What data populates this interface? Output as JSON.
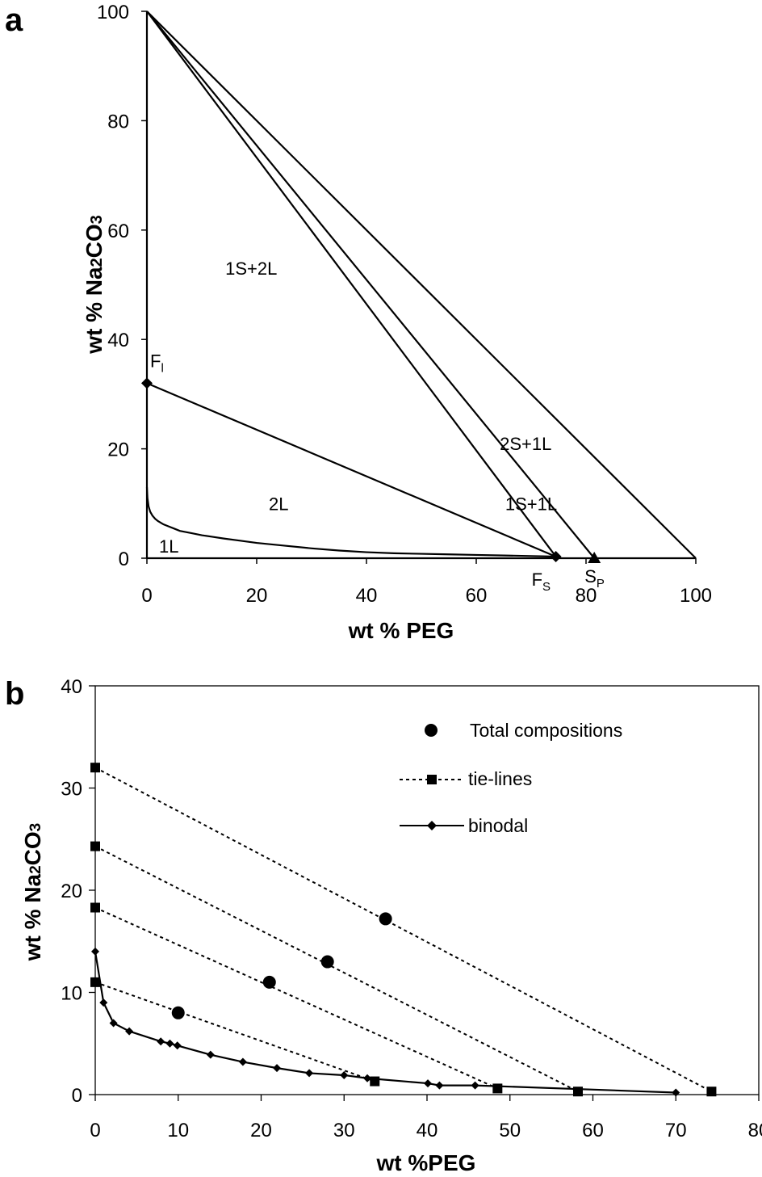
{
  "chart_data": [
    {
      "panel": "a",
      "type": "line",
      "xlabel": "wt % PEG",
      "ylabel_parts": [
        "wt % Na",
        "2",
        "CO",
        "3"
      ],
      "xlim": [
        0,
        100
      ],
      "ylim": [
        0,
        100
      ],
      "x_ticks": [
        0,
        20,
        40,
        60,
        80,
        100
      ],
      "y_ticks": [
        0,
        20,
        40,
        60,
        80,
        100
      ],
      "region_labels": [
        {
          "text": "1S+2L",
          "x": 19,
          "y": 53
        },
        {
          "text": "2L",
          "x": 24,
          "y": 10
        },
        {
          "text": "1L",
          "x": 4,
          "y": 2.2
        },
        {
          "text": "2S+1L",
          "x": 69,
          "y": 21
        },
        {
          "text": "1S+1L",
          "x": 70,
          "y": 10
        }
      ],
      "points": [
        {
          "label": "F",
          "sub": "l",
          "x": 0,
          "y": 32,
          "marker": "diamond"
        },
        {
          "label": "F",
          "sub": "S",
          "x": 74.5,
          "y": 0.3,
          "marker": "diamond"
        },
        {
          "label": "S",
          "sub": "P",
          "x": 81.5,
          "y": 0,
          "marker": "triangle"
        }
      ],
      "lines": [
        [
          [
            0,
            100
          ],
          [
            74.5,
            0.3
          ]
        ],
        [
          [
            0,
            100
          ],
          [
            81.5,
            0
          ]
        ],
        [
          [
            0,
            100
          ],
          [
            100,
            0
          ]
        ],
        [
          [
            0,
            32
          ],
          [
            74.5,
            0.3
          ]
        ],
        [
          [
            0,
            100
          ],
          [
            0,
            0
          ]
        ],
        [
          [
            0,
            0
          ],
          [
            100,
            0
          ]
        ]
      ],
      "binodal": {
        "x": [
          0,
          0.1,
          0.3,
          0.6,
          1,
          1.5,
          2,
          3,
          4,
          5,
          6,
          8,
          10,
          12,
          14,
          17,
          20,
          25,
          30,
          35,
          40,
          45,
          50,
          55,
          60,
          65,
          70,
          74.5
        ],
        "y": [
          13,
          11,
          9.5,
          8.5,
          7.8,
          7.2,
          6.8,
          6.2,
          5.8,
          5.4,
          5.0,
          4.6,
          4.2,
          3.9,
          3.6,
          3.2,
          2.8,
          2.3,
          1.8,
          1.4,
          1.1,
          0.9,
          0.8,
          0.7,
          0.6,
          0.5,
          0.4,
          0.3
        ]
      }
    },
    {
      "panel": "b",
      "type": "scatter",
      "xlabel": "wt %PEG",
      "ylabel_parts": [
        "wt % Na",
        "2",
        "CO",
        "3"
      ],
      "xlim": [
        0,
        80
      ],
      "ylim": [
        0,
        40
      ],
      "x_ticks": [
        0,
        10,
        20,
        30,
        40,
        50,
        60,
        70,
        80
      ],
      "y_ticks": [
        0,
        10,
        20,
        30,
        40
      ],
      "series": [
        {
          "name": "Total compositions",
          "marker": "circle",
          "x": [
            10,
            21,
            28,
            35
          ],
          "y": [
            8,
            11,
            13,
            17.2
          ]
        },
        {
          "name": "tie-lines",
          "marker": "square",
          "lines": [
            [
              [
                0,
                32
              ],
              [
                74.3,
                0.3
              ]
            ],
            [
              [
                0,
                24.3
              ],
              [
                58.2,
                0.3
              ]
            ],
            [
              [
                0,
                18.3
              ],
              [
                48.5,
                0.6
              ]
            ],
            [
              [
                0,
                11
              ],
              [
                33.7,
                1.3
              ]
            ]
          ]
        },
        {
          "name": "binodal",
          "marker": "diamond",
          "x": [
            0,
            1,
            2.2,
            4.1,
            7.9,
            9,
            9.9,
            13.9,
            17.8,
            21.9,
            25.8,
            30,
            32.8,
            40.1,
            41.5,
            45.8,
            70
          ],
          "y": [
            14,
            9,
            7,
            6.2,
            5.2,
            5,
            4.8,
            3.9,
            3.2,
            2.6,
            2.1,
            1.9,
            1.6,
            1.1,
            0.9,
            0.9,
            0.2
          ]
        }
      ]
    }
  ]
}
